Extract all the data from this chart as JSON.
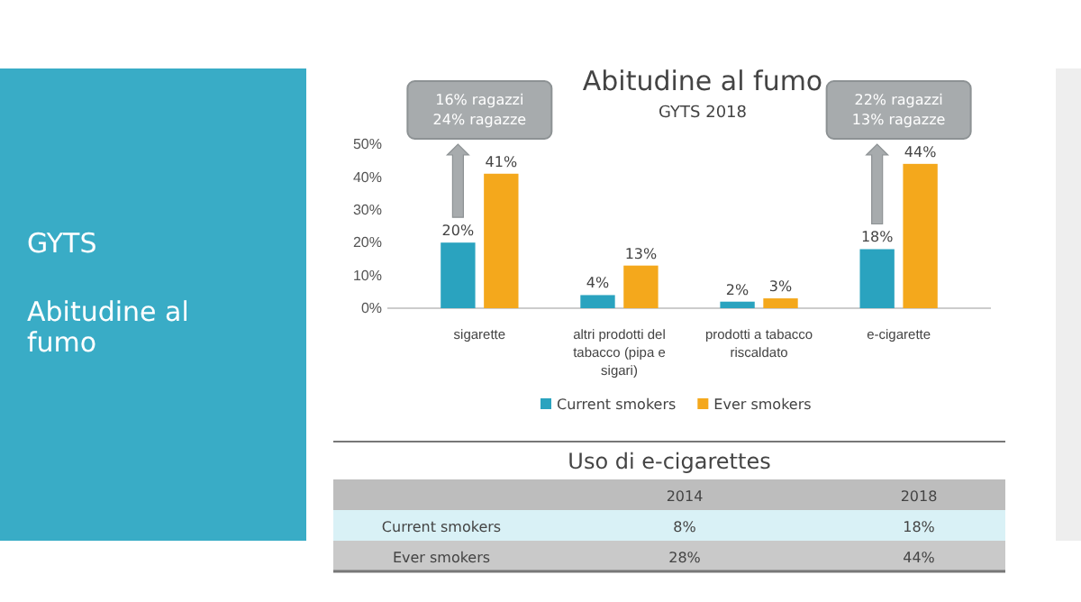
{
  "chart_data": [
    {
      "type": "bar",
      "title": "Abitudine al fumo",
      "subtitle": "GYTS 2018",
      "categories": [
        "sigarette",
        "altri prodotti del tabacco (pipa e sigari)",
        "prodotti a tabacco riscaldato",
        "e-cigarette"
      ],
      "series": [
        {
          "name": "Current smokers",
          "color": "#2aa3bf",
          "values": [
            20,
            4,
            2,
            18
          ],
          "value_labels": [
            "20%",
            "4%",
            "2%",
            "18%"
          ]
        },
        {
          "name": "Ever smokers",
          "color": "#f4a81c",
          "values": [
            41,
            13,
            3,
            44
          ],
          "value_labels": [
            "41%",
            "13%",
            "3%",
            "44%"
          ]
        }
      ],
      "ylim": [
        0,
        50
      ],
      "yticks": [
        {
          "value": 0,
          "label": "0%"
        },
        {
          "value": 10,
          "label": "10%"
        },
        {
          "value": 20,
          "label": "20%"
        },
        {
          "value": 30,
          "label": "30%"
        },
        {
          "value": 40,
          "label": "40%"
        },
        {
          "value": 50,
          "label": "50%"
        }
      ],
      "grid": false,
      "legend": "bottom",
      "annotations": [
        "GYTS",
        "Abitudine al fumo",
        "16% ragazzi\n24% ragazze",
        "22% ragazzi\n13% ragazze"
      ]
    },
    {
      "type": "other",
      "title": "Uso di e-cigarettes",
      "categories": [
        "2014",
        "2018"
      ],
      "y_categories": [
        "Current smokers",
        "Ever smokers"
      ],
      "cell_labels": [
        [
          "8%",
          "18%"
        ],
        [
          "28%",
          "44%"
        ]
      ]
    }
  ]
}
